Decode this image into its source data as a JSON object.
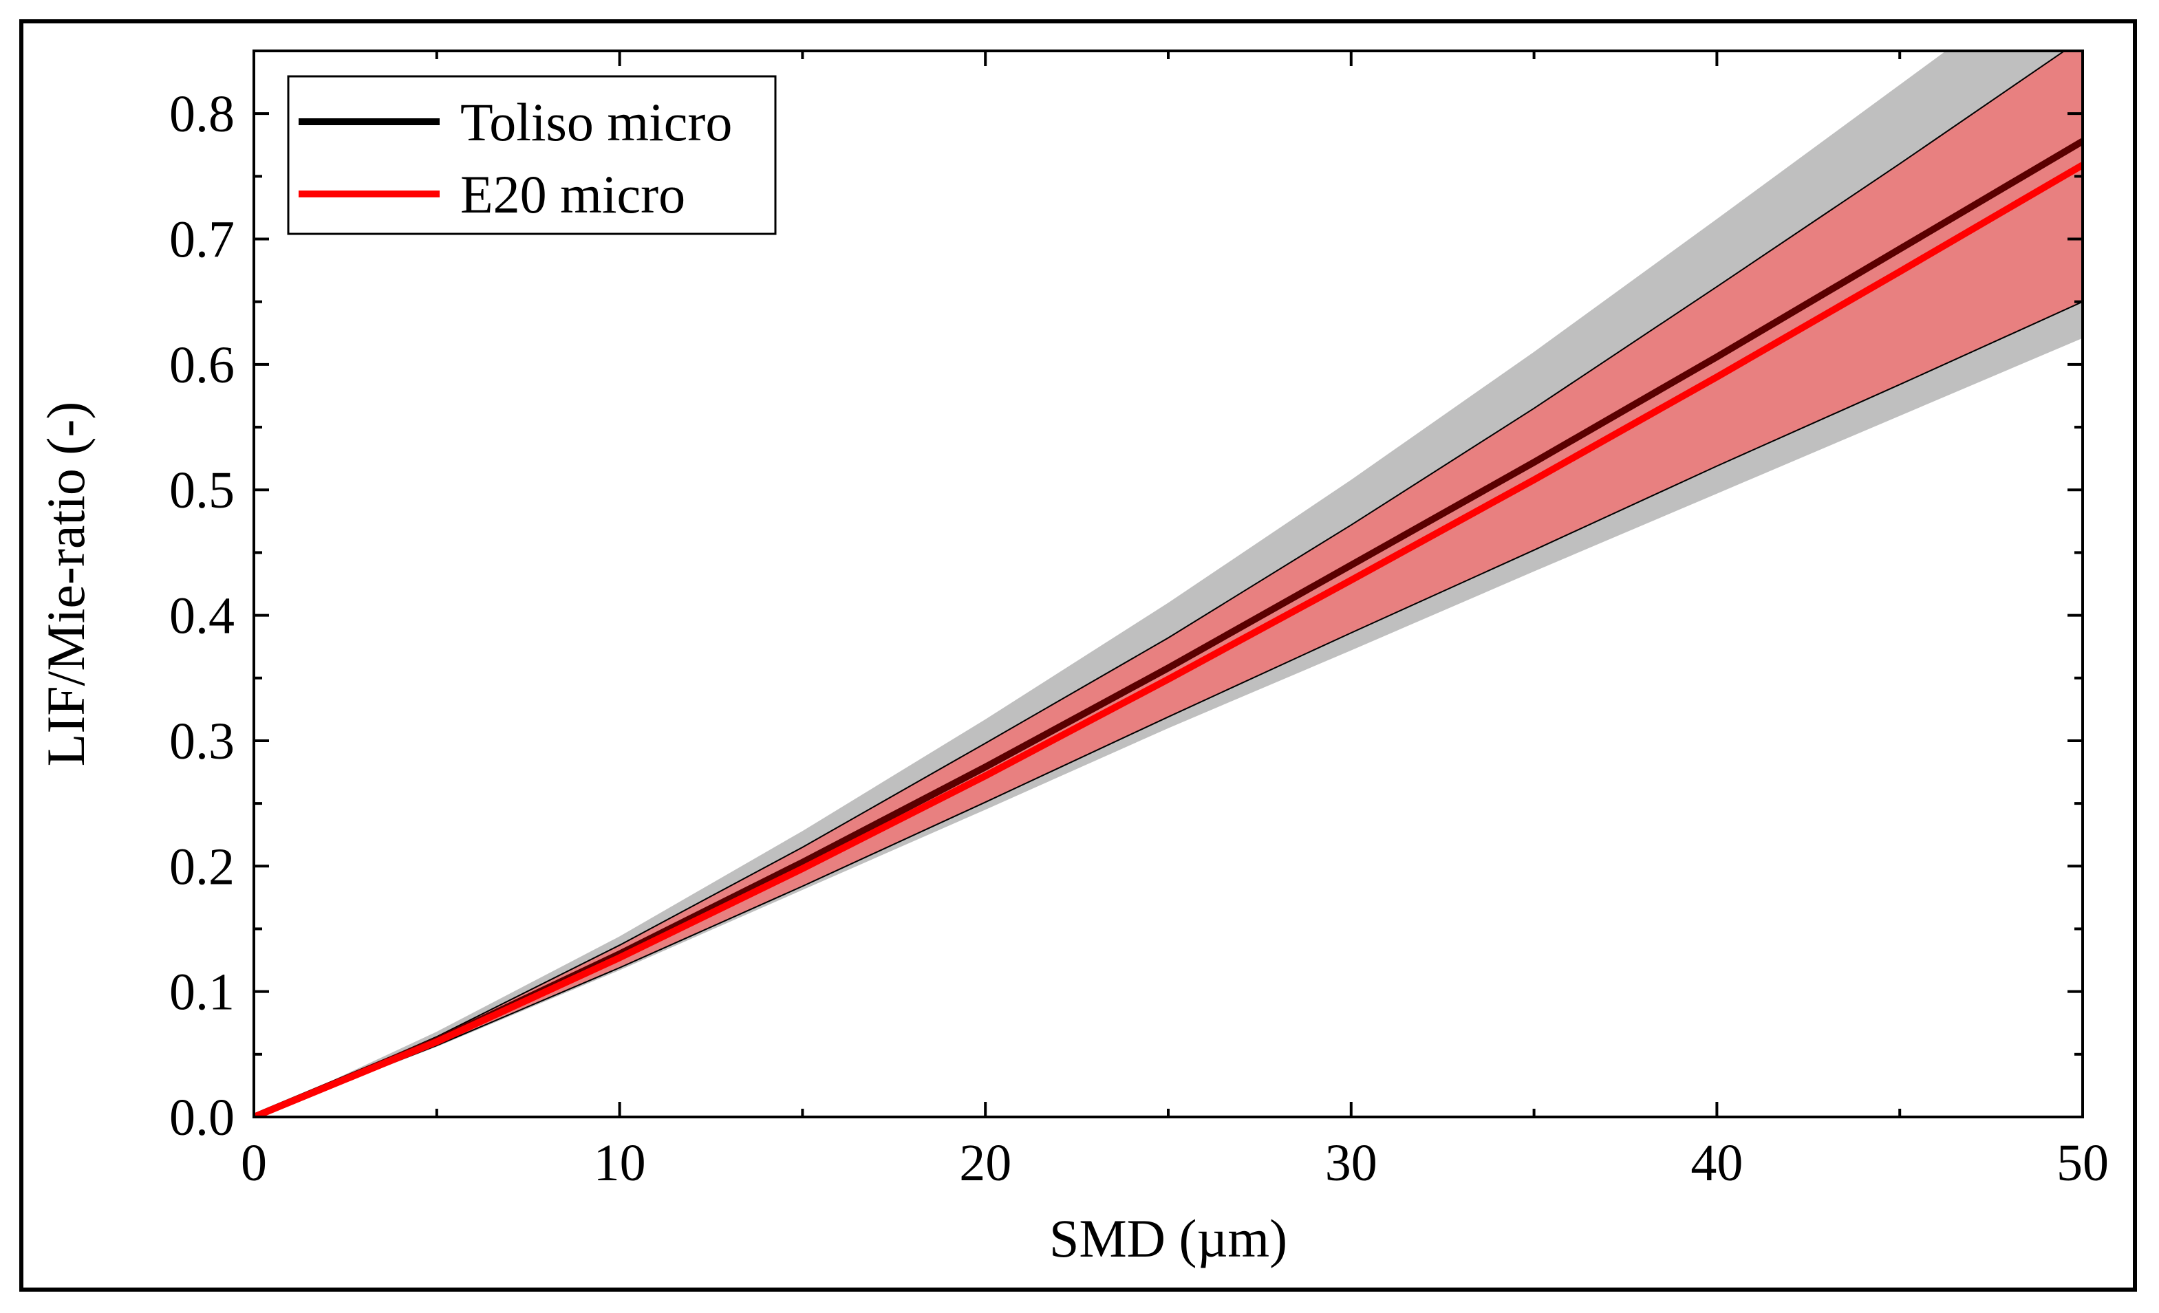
{
  "chart_data": {
    "type": "area",
    "xlabel": "SMD (µm)",
    "ylabel": "LIF/Mie-ratio (-)",
    "xlim": [
      0,
      50
    ],
    "ylim": [
      0,
      0.85
    ],
    "x_ticks": [
      0,
      10,
      20,
      30,
      40,
      50
    ],
    "x_tick_labels": [
      "0",
      "10",
      "20",
      "30",
      "40",
      "50"
    ],
    "y_ticks": [
      0.0,
      0.1,
      0.2,
      0.3,
      0.4,
      0.5,
      0.6,
      0.7,
      0.8
    ],
    "y_tick_labels": [
      "0.0",
      "0.1",
      "0.2",
      "0.3",
      "0.4",
      "0.5",
      "0.6",
      "0.7",
      "0.8"
    ],
    "grid": false,
    "legend_position": "top-left",
    "colors": {
      "toliso": "#000000",
      "toliso_line": "#5a0000",
      "toliso_band": "#bfbfbf",
      "e20": "#ff0000",
      "e20_band": "#e88080",
      "band_edge": "#000000"
    },
    "x": [
      0,
      5,
      10,
      15,
      20,
      25,
      30,
      35,
      40,
      45,
      50
    ],
    "series": [
      {
        "name": "Toliso micro",
        "values": [
          0.0,
          0.061,
          0.13,
          0.203,
          0.279,
          0.358,
          0.44,
          0.522,
          0.606,
          0.692,
          0.778
        ],
        "band_lower": [
          0.0,
          0.056,
          0.117,
          0.181,
          0.245,
          0.31,
          0.372,
          0.435,
          0.497,
          0.559,
          0.621
        ],
        "band_upper": [
          0.0,
          0.068,
          0.144,
          0.228,
          0.317,
          0.41,
          0.508,
          0.61,
          0.716,
          0.823,
          0.93
        ]
      },
      {
        "name": "E20 micro",
        "values": [
          0.0,
          0.06,
          0.127,
          0.198,
          0.272,
          0.349,
          0.428,
          0.508,
          0.59,
          0.674,
          0.759
        ],
        "band_lower": [
          0.0,
          0.057,
          0.119,
          0.184,
          0.251,
          0.319,
          0.386,
          0.452,
          0.519,
          0.584,
          0.65
        ],
        "band_upper": [
          0.0,
          0.064,
          0.137,
          0.215,
          0.298,
          0.382,
          0.472,
          0.565,
          0.662,
          0.76,
          0.86
        ]
      }
    ]
  }
}
